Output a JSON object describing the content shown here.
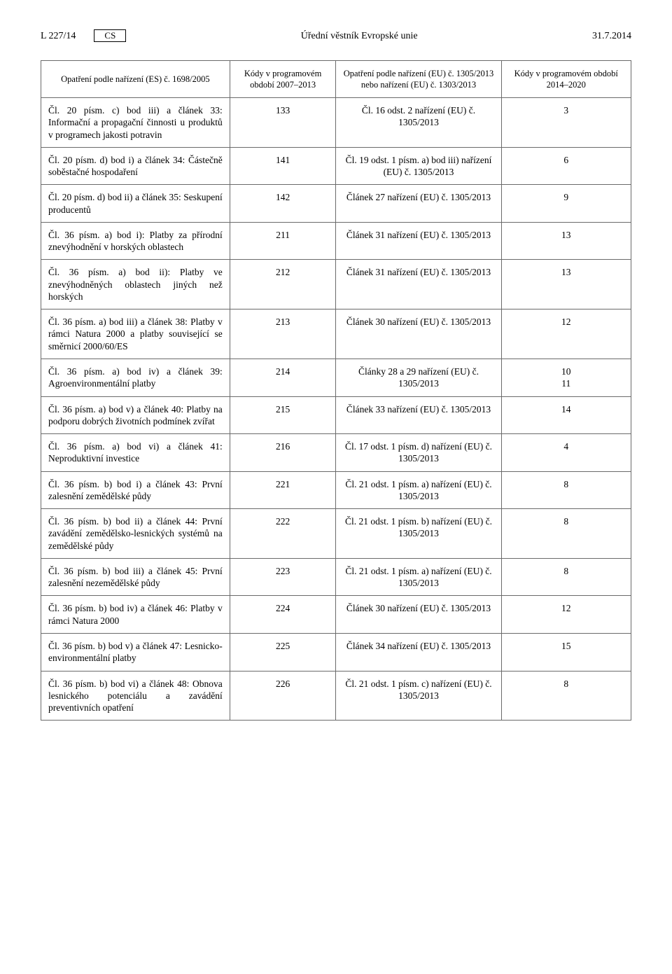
{
  "header": {
    "left": "L 227/14",
    "lang": "CS",
    "center": "Úřední věstník Evropské unie",
    "right": "31.7.2014"
  },
  "table": {
    "columns": [
      "Opatření podle nařízení (ES) č. 1698/2005",
      "Kódy v programovém období 2007–2013",
      "Opatření podle nařízení (EU) č. 1305/2013 nebo nařízení (EU) č. 1303/2013",
      "Kódy v programovém období 2014–2020"
    ],
    "rows": [
      {
        "c1": "Čl. 20 písm. c) bod iii) a článek 33: Informační a propagační činnosti u produktů v programech jakosti potravin",
        "c2": "133",
        "c3": "Čl. 16 odst. 2 nařízení (EU) č. 1305/2013",
        "c4": "3"
      },
      {
        "c1": "Čl. 20 písm. d) bod i) a článek 34: Částečně soběstačné hospodaření",
        "c2": "141",
        "c3": "Čl. 19 odst. 1 písm. a) bod iii) nařízení (EU) č. 1305/2013",
        "c4": "6"
      },
      {
        "c1": "Čl. 20 písm. d) bod ii) a článek 35: Seskupení producentů",
        "c2": "142",
        "c3": "Článek 27 nařízení (EU) č. 1305/2013",
        "c4": "9"
      },
      {
        "c1": "Čl. 36 písm. a) bod i): Platby za přírodní znevýhodnění v horských oblastech",
        "c2": "211",
        "c3": "Článek 31 nařízení (EU) č. 1305/2013",
        "c4": "13"
      },
      {
        "c1": "Čl. 36 písm. a) bod ii): Platby ve znevýhodněných oblastech jiných než horských",
        "c2": "212",
        "c3": "Článek 31 nařízení (EU) č. 1305/2013",
        "c4": "13"
      },
      {
        "c1": "Čl. 36 písm. a) bod iii) a článek 38: Platby v rámci Natura 2000 a platby související se směrnicí 2000/60/ES",
        "c2": "213",
        "c3": "Článek 30 nařízení (EU) č. 1305/2013",
        "c4": "12"
      },
      {
        "c1": "Čl. 36 písm. a) bod iv) a článek 39: Agroenvironmentální platby",
        "c2": "214",
        "c3": "Články 28 a 29 nařízení (EU) č. 1305/2013",
        "c4": "10\n11"
      },
      {
        "c1": "Čl. 36 písm. a) bod v) a článek 40: Platby na podporu dobrých životních podmínek zvířat",
        "c2": "215",
        "c3": "Článek 33 nařízení (EU) č. 1305/2013",
        "c4": "14"
      },
      {
        "c1": "Čl. 36 písm. a) bod vi) a článek 41: Neproduktivní investice",
        "c2": "216",
        "c3": "Čl. 17 odst. 1 písm. d) nařízení (EU) č. 1305/2013",
        "c4": "4"
      },
      {
        "c1": "Čl. 36 písm. b) bod i) a článek 43: První zalesnění zemědělské půdy",
        "c2": "221",
        "c3": "Čl. 21 odst. 1 písm. a) nařízení (EU) č. 1305/2013",
        "c4": "8"
      },
      {
        "c1": "Čl. 36 písm. b) bod ii) a článek 44: První zavádění zemědělsko-lesnických systémů na zemědělské půdy",
        "c2": "222",
        "c3": "Čl. 21 odst. 1 písm. b) nařízení (EU) č. 1305/2013",
        "c4": "8"
      },
      {
        "c1": "Čl. 36 písm. b) bod iii) a článek 45: První zalesnění nezemědělské půdy",
        "c2": "223",
        "c3": "Čl. 21 odst. 1 písm. a) nařízení (EU) č. 1305/2013",
        "c4": "8"
      },
      {
        "c1": "Čl. 36 písm. b) bod iv) a článek 46: Platby v rámci Natura 2000",
        "c2": "224",
        "c3": "Článek 30 nařízení (EU) č. 1305/2013",
        "c4": "12"
      },
      {
        "c1": "Čl. 36 písm. b) bod v) a článek 47: Lesnicko-environmentální platby",
        "c2": "225",
        "c3": "Článek 34 nařízení (EU) č. 1305/2013",
        "c4": "15"
      },
      {
        "c1": "Čl. 36 písm. b) bod vi) a článek 48: Obnova lesnického potenciálu a zavádění preventivních opatření",
        "c2": "226",
        "c3": "Čl. 21 odst. 1 písm. c) nařízení (EU) č. 1305/2013",
        "c4": "8"
      }
    ]
  }
}
